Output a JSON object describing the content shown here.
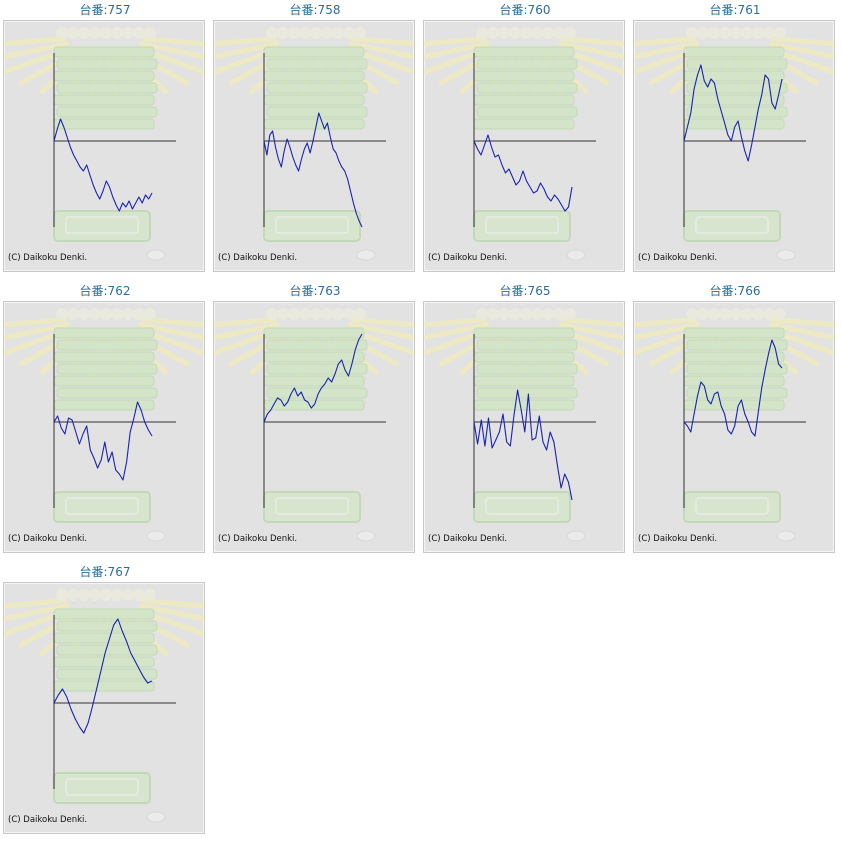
{
  "copyright": "(C) Daikoku Denki.",
  "colors": {
    "title": "#2a6d9e",
    "line": "#1a23b0",
    "axis": "#333333",
    "panel": "#e2e2e2"
  },
  "chart_data": [
    {
      "type": "line",
      "title": "台番:757",
      "values": [
        0,
        12,
        22,
        14,
        4,
        -6,
        -14,
        -20,
        -26,
        -30,
        -24,
        -34,
        -44,
        -52,
        -58,
        -50,
        -40,
        -46,
        -56,
        -64,
        -70,
        -62,
        -66,
        -60,
        -68,
        -62,
        -56,
        -62,
        -54,
        -58,
        -52
      ]
    },
    {
      "type": "line",
      "title": "台番:758",
      "values": [
        0,
        -14,
        6,
        10,
        -6,
        -18,
        -26,
        -10,
        2,
        -6,
        -16,
        -24,
        -30,
        -18,
        -8,
        -2,
        -12,
        0,
        14,
        28,
        20,
        12,
        18,
        4,
        -8,
        -12,
        -20,
        -26,
        -30,
        -38,
        -50,
        -62,
        -72,
        -80,
        -86
      ]
    },
    {
      "type": "line",
      "title": "台番:760",
      "values": [
        0,
        -8,
        -14,
        -4,
        6,
        -6,
        -16,
        -14,
        -24,
        -32,
        -28,
        -36,
        -44,
        -40,
        -30,
        -40,
        -46,
        -52,
        -50,
        -42,
        -48,
        -56,
        -60,
        -54,
        -58,
        -64,
        -70,
        -66,
        -46
      ]
    },
    {
      "type": "line",
      "title": "台番:761",
      "values": [
        0,
        14,
        28,
        52,
        66,
        76,
        60,
        54,
        62,
        58,
        42,
        30,
        18,
        6,
        0,
        14,
        20,
        4,
        -10,
        -20,
        -4,
        14,
        32,
        46,
        66,
        62,
        38,
        32,
        46,
        62
      ]
    },
    {
      "type": "line",
      "title": "台番:762",
      "values": [
        0,
        6,
        -6,
        -12,
        4,
        2,
        -10,
        -22,
        -12,
        -4,
        -28,
        -36,
        -46,
        -38,
        -20,
        -40,
        -30,
        -48,
        -52,
        -58,
        -40,
        -10,
        4,
        20,
        12,
        0,
        -8,
        -14
      ]
    },
    {
      "type": "line",
      "title": "台番:763",
      "values": [
        0,
        8,
        12,
        18,
        24,
        22,
        16,
        20,
        28,
        34,
        26,
        30,
        22,
        20,
        14,
        18,
        28,
        34,
        38,
        44,
        40,
        48,
        58,
        62,
        52,
        46,
        58,
        72,
        82,
        88
      ]
    },
    {
      "type": "line",
      "title": "台番:765",
      "values": [
        0,
        -22,
        2,
        -24,
        4,
        -26,
        -18,
        -10,
        8,
        -20,
        -24,
        6,
        32,
        12,
        -10,
        28,
        -18,
        -16,
        6,
        -20,
        -28,
        -10,
        -20,
        -44,
        -66,
        -52,
        -60,
        -78
      ]
    },
    {
      "type": "line",
      "title": "台番:766",
      "values": [
        0,
        -4,
        -10,
        8,
        26,
        40,
        36,
        22,
        18,
        28,
        30,
        16,
        8,
        -8,
        -12,
        -4,
        16,
        22,
        8,
        0,
        -10,
        -14,
        10,
        34,
        52,
        68,
        82,
        74,
        58,
        54
      ]
    },
    {
      "type": "line",
      "title": "台番:767",
      "values": [
        0,
        8,
        14,
        6,
        -6,
        -16,
        -24,
        -30,
        -20,
        -4,
        14,
        32,
        50,
        64,
        78,
        84,
        72,
        62,
        50,
        42,
        34,
        26,
        20,
        22
      ]
    }
  ]
}
